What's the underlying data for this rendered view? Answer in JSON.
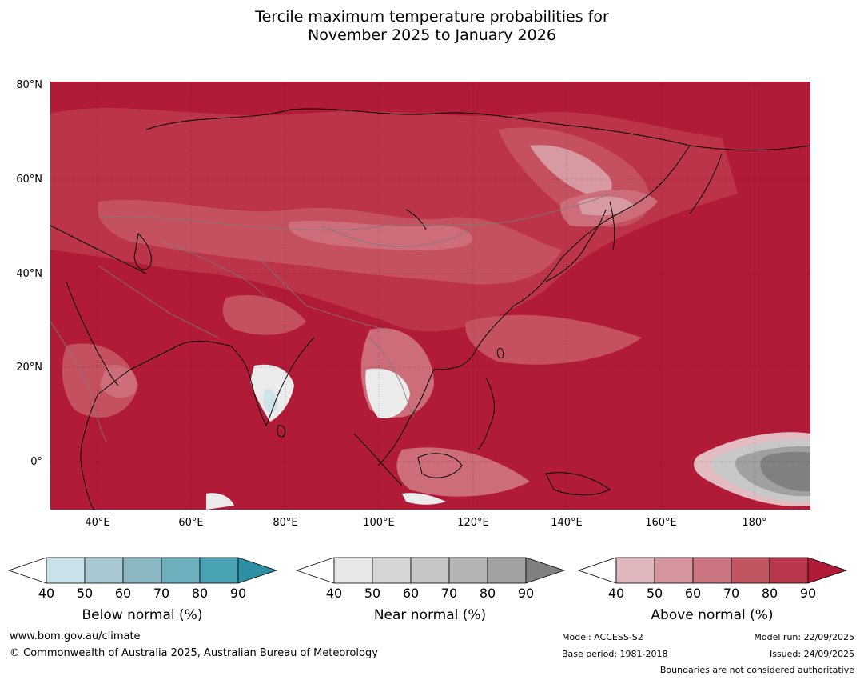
{
  "title": {
    "line1": "Tercile maximum temperature probabilities for",
    "line2": "November 2025 to January 2026"
  },
  "axes": {
    "latitude_labels": [
      "80°N",
      "60°N",
      "40°N",
      "20°N",
      "0°"
    ],
    "longitude_labels": [
      "40°E",
      "60°E",
      "80°E",
      "100°E",
      "120°E",
      "140°E",
      "160°E",
      "180°"
    ]
  },
  "map": {
    "lon_range": [
      30,
      192
    ],
    "lat_range": [
      -10,
      81
    ],
    "dominant_category": "Above normal",
    "colors": {
      "above_90": "#b21b38",
      "above_80": "#bb3449",
      "above_70": "#c55060",
      "above_60": "#cd6d79",
      "above_50": "#d89aa2",
      "above_40": "#e2bcc1",
      "near_40": "#ebebeb",
      "near_60": "#c8c8c8",
      "near_80": "#a0a0a0",
      "near_90": "#808080",
      "below_40": "#cfe3ea",
      "below_50": "#a9c9d4"
    }
  },
  "legends": [
    {
      "name": "Below normal (%)",
      "ticks": [
        "40",
        "50",
        "60",
        "70",
        "80",
        "90"
      ],
      "colors": [
        "#ffffff",
        "#cae3ea",
        "#a8c9d1",
        "#8bb7c2",
        "#6eafbd",
        "#49a2b3",
        "#2d8fa3"
      ]
    },
    {
      "name": "Near normal (%)",
      "ticks": [
        "40",
        "50",
        "60",
        "70",
        "80",
        "90"
      ],
      "colors": [
        "#ffffff",
        "#e8e8e8",
        "#d6d6d6",
        "#c6c6c6",
        "#b4b4b4",
        "#a2a2a2",
        "#808080"
      ]
    },
    {
      "name": "Above normal (%)",
      "ticks": [
        "40",
        "50",
        "60",
        "70",
        "80",
        "90"
      ],
      "colors": [
        "#ffffff",
        "#e0b6bd",
        "#d5959d",
        "#ca7580",
        "#c25562",
        "#b9374c",
        "#b21b38"
      ]
    }
  ],
  "footer": {
    "website": "www.bom.gov.au/climate",
    "copyright": "© Commonwealth of Australia 2025, Australian Bureau of Meteorology",
    "model": "Model: ACCESS-S2",
    "base_period": "Base period: 1981-2018",
    "model_run": "Model run: 22/09/2025",
    "issued": "Issued: 24/09/2025",
    "disclaimer": "Boundaries are not considered authoritative"
  }
}
